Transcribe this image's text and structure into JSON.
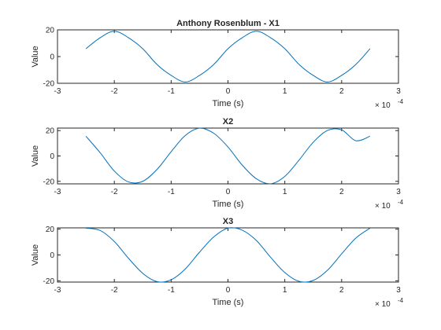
{
  "chart_data": [
    {
      "type": "line",
      "title": "Anthony Rosenblum - X1",
      "xlabel": "Time (s)",
      "ylabel": "Value",
      "xlim": [
        -3,
        3
      ],
      "ylim": [
        -20,
        20
      ],
      "x_ticks": [
        "-3",
        "-2",
        "-1",
        "0",
        "1",
        "2",
        "3"
      ],
      "y_ticks": [
        "-20",
        "0",
        "20"
      ],
      "x_exponent_label": "× 10",
      "x_exponent_power": "-4",
      "grid": false,
      "series": [
        {
          "x": [
            -2.5,
            -2.25,
            -2.0,
            -1.75,
            -1.5,
            -1.25,
            -1.0,
            -0.75,
            -0.5,
            -0.25,
            0.0,
            0.25,
            0.5,
            0.75,
            1.0,
            1.25,
            1.5,
            1.75,
            2.0,
            2.25,
            2.5
          ],
          "y": [
            5.9,
            14.1,
            19.0,
            14.1,
            5.9,
            -5.9,
            -14.1,
            -19.0,
            -14.1,
            -5.9,
            5.9,
            14.1,
            19.0,
            14.1,
            5.9,
            -5.9,
            -14.1,
            -19.0,
            -14.1,
            -5.9,
            5.9
          ]
        }
      ]
    },
    {
      "type": "line",
      "title": "X2",
      "xlabel": "Time (s)",
      "ylabel": "Value",
      "xlim": [
        -3,
        3
      ],
      "ylim": [
        -22,
        22
      ],
      "x_ticks": [
        "-3",
        "-2",
        "-1",
        "0",
        "1",
        "2",
        "3"
      ],
      "y_ticks": [
        "-20",
        "0",
        "20"
      ],
      "x_exponent_label": "× 10",
      "x_exponent_power": "-4",
      "grid": false,
      "series": [
        {
          "x": [
            -2.5,
            -2.25,
            -2.0,
            -1.75,
            -1.5,
            -1.25,
            -1.0,
            -0.75,
            -0.5,
            -0.25,
            0.0,
            0.25,
            0.5,
            0.75,
            1.0,
            1.25,
            1.5,
            1.75,
            2.0,
            2.25,
            2.5
          ],
          "y": [
            15.6,
            2.6,
            -11.9,
            -20.5,
            -20.0,
            -10.7,
            3.4,
            16.2,
            21.9,
            17.9,
            7.1,
            -7.2,
            -18.0,
            -21.9,
            -16.1,
            -3.3,
            10.8,
            20.1,
            20.6,
            12.0,
            15.6
          ]
        }
      ]
    },
    {
      "type": "line",
      "title": "X3",
      "xlabel": "Time (s)",
      "ylabel": "Value",
      "xlim": [
        -3,
        3
      ],
      "ylim": [
        -21,
        21
      ],
      "x_ticks": [
        "-3",
        "-2",
        "-1",
        "0",
        "1",
        "2",
        "3"
      ],
      "y_ticks": [
        "-20",
        "0",
        "20"
      ],
      "x_exponent_label": "× 10",
      "x_exponent_power": "-4",
      "grid": false,
      "series": [
        {
          "x": [
            -2.5,
            -2.25,
            -2.0,
            -1.75,
            -1.5,
            -1.25,
            -1.0,
            -0.75,
            -0.5,
            -0.25,
            0.0,
            0.25,
            0.5,
            0.75,
            1.0,
            1.25,
            1.5,
            1.75,
            2.0,
            2.25,
            2.5
          ],
          "y": [
            20.8,
            19.0,
            10.4,
            -2.6,
            -14.2,
            -20.6,
            -19.2,
            -10.8,
            2.2,
            14.0,
            20.8,
            19.2,
            11.2,
            -1.8,
            -13.6,
            -20.4,
            -19.7,
            -11.9,
            0.9,
            13.1,
            20.8
          ]
        }
      ]
    }
  ]
}
